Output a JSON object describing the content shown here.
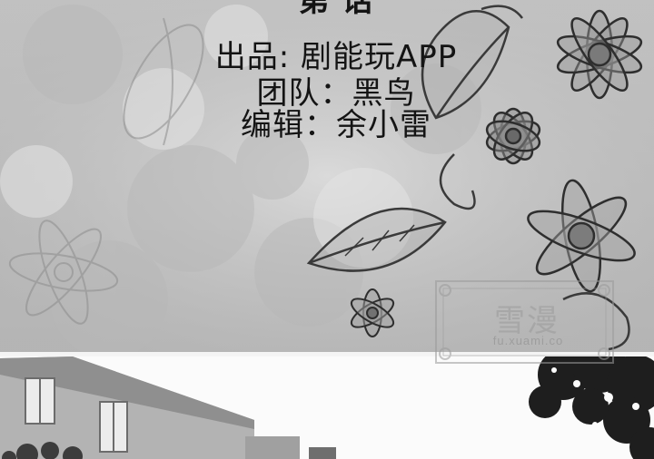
{
  "credits": {
    "title": "第 话",
    "line1": "出品: 剧能玩APP",
    "line2": "团队：黑鸟",
    "line3": "编辑：余小雷"
  },
  "watermark": {
    "text": "雪漫",
    "domain": "fu.xuami.co"
  },
  "colors": {
    "banner_bg": "#c9c9c9",
    "ink": "#141414",
    "building": "#b4b4b4",
    "tree": "#2a2a2a"
  },
  "icons": [
    "flower-pattern",
    "leaf-pattern",
    "watermark-seal"
  ]
}
